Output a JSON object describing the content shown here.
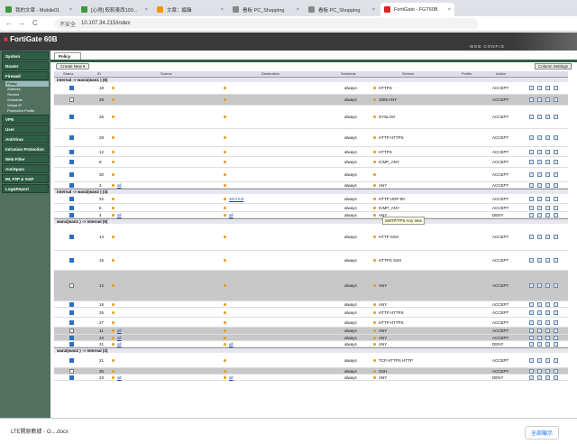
{
  "browser": {
    "tabs": [
      {
        "title": "我的文章 - Mobile01",
        "favicon_color": "#3a9a3a",
        "active": false
      },
      {
        "title": "[心得] 較較東西100...",
        "favicon_color": "#3a9a3a",
        "active": false
      },
      {
        "title": "文章：編輯",
        "favicon_color": "#f29900",
        "active": false
      },
      {
        "title": "看板 PC_Shopping",
        "favicon_color": "#888888",
        "active": false
      },
      {
        "title": "看板 PC_Shopping",
        "favicon_color": "#888888",
        "active": false
      },
      {
        "title": "FortiGate - FGT60B",
        "favicon_color": "#d22",
        "active": true
      }
    ],
    "nav": {
      "back": "←",
      "forward": "→",
      "reload": "C"
    },
    "security_label": "不安全",
    "url": "10.107.34.215/index"
  },
  "fortigate": {
    "product": "FortiGate 60B",
    "web_config": "WEB CONFIG",
    "sidebar": [
      {
        "label": "System"
      },
      {
        "label": "Router"
      },
      {
        "label": "Firewall",
        "sub": [
          "Policy",
          "Address",
          "Service",
          "Schedule",
          "Virtual IP",
          "Protection Profile"
        ]
      },
      {
        "label": "VPN"
      },
      {
        "label": "User"
      },
      {
        "label": "AntiVirus"
      },
      {
        "label": "Intrusion Protection"
      },
      {
        "label": "Web Filter"
      },
      {
        "label": "AntiSpam"
      },
      {
        "label": "IM, P2P & VoIP"
      },
      {
        "label": "Log&Report"
      }
    ],
    "page_tab": "Policy",
    "create_new": "Create New ▾",
    "column_settings": "Column Settings",
    "columns": [
      "Status",
      "ID",
      "Source",
      "Destination",
      "Schedule",
      "Service",
      "Profile",
      "Action"
    ],
    "groups": [
      {
        "label": "internal -> wan1(wan1 ) (8)",
        "rows": [
          {
            "on": true,
            "id": "18",
            "schedule": "always",
            "service": "HTTPS",
            "action": "ACCEPT",
            "h": 14
          },
          {
            "on": false,
            "id": "29",
            "schedule": "always",
            "service": "3389 ANY",
            "action": "ACCEPT",
            "h": 12,
            "dis": true
          },
          {
            "on": true,
            "id": "26",
            "schedule": "always",
            "service": "SYSLOG",
            "action": "ACCEPT",
            "h": 26
          },
          {
            "on": true,
            "id": "28",
            "schedule": "always",
            "service": "HTTP HTTPS",
            "action": "ACCEPT",
            "h": 20
          },
          {
            "on": true,
            "id": "12",
            "schedule": "always",
            "service": "HTTPS",
            "action": "ACCEPT",
            "h": 11
          },
          {
            "on": true,
            "id": "8",
            "schedule": "always",
            "service": "ICMP_ANY",
            "action": "ACCEPT",
            "h": 12
          },
          {
            "on": true,
            "id": "30",
            "schedule": "always",
            "service": "",
            "action": "ACCEPT",
            "h": 16
          },
          {
            "on": true,
            "id": "3",
            "src": "all",
            "schedule": "always",
            "service": "ANY",
            "action": "ACCEPT",
            "h": 7
          }
        ]
      },
      {
        "label": "internal -> wan2(wan2 ) (3)",
        "rows": [
          {
            "on": true,
            "id": "22",
            "dst": "10.0.0.0",
            "schedule": "always",
            "service": "HTTP UDP-80",
            "action": "ACCEPT",
            "h": 11
          },
          {
            "on": true,
            "id": "6",
            "schedule": "always",
            "service": "ICMP_ANY",
            "action": "ACCEPT",
            "h": 9
          },
          {
            "on": true,
            "id": "4",
            "src": "all",
            "dst": "all",
            "schedule": "always",
            "service": "ANY",
            "action": "DENY",
            "h": 7
          }
        ]
      },
      {
        "label": "wan1(wan1 ) -> internal (9)",
        "rows": [
          {
            "on": true,
            "id": "14",
            "schedule": "always",
            "service": "HTTP SSH",
            "action": "ACCEPT",
            "h": 30
          },
          {
            "on": true,
            "id": "15",
            "schedule": "always",
            "service": "HTTPS SSH",
            "action": "ACCEPT",
            "h": 22
          },
          {
            "on": false,
            "id": "12",
            "schedule": "always",
            "service": "ANY",
            "action": "ACCEPT",
            "h": 34,
            "dis": true
          },
          {
            "on": true,
            "id": "16",
            "schedule": "always",
            "service": "ANY",
            "action": "ACCEPT",
            "h": 7
          },
          {
            "on": true,
            "id": "25",
            "schedule": "always",
            "service": "HTTP HTTPS",
            "action": "ACCEPT",
            "h": 11
          },
          {
            "on": true,
            "id": "27",
            "schedule": "always",
            "service": "HTTP HTTPS",
            "action": "ACCEPT",
            "h": 11
          },
          {
            "on": false,
            "id": "11",
            "src": "all",
            "schedule": "always",
            "service": "ANY",
            "action": "ACCEPT",
            "h": 8,
            "dis": true
          },
          {
            "on": true,
            "id": "24",
            "src": "all",
            "schedule": "always",
            "service": "ANY",
            "action": "ACCEPT",
            "h": 7,
            "dis": true
          },
          {
            "on": true,
            "id": "31",
            "src": "all",
            "dst": "all",
            "schedule": "always",
            "service": "ANY",
            "action": "DENY",
            "h": 7
          }
        ]
      },
      {
        "label": "wan2(wan2 ) -> internal (3)",
        "rows": [
          {
            "on": true,
            "id": "21",
            "schedule": "always",
            "service": "TCP HTTPS HTTP",
            "action": "ACCEPT",
            "h": 17
          },
          {
            "on": false,
            "id": "30",
            "schedule": "always",
            "service": "SSH",
            "action": "ACCEPT",
            "h": 7,
            "dis": true
          },
          {
            "on": true,
            "id": "23",
            "src": "all",
            "dst": "all",
            "schedule": "always",
            "service": "ANY",
            "action": "DENY",
            "h": 7
          }
        ]
      }
    ],
    "tooltip": "SMTP/TPS Any time"
  },
  "downloads": {
    "file": "LTE開原數據 - O....docx",
    "show_all": "全部顯示"
  }
}
